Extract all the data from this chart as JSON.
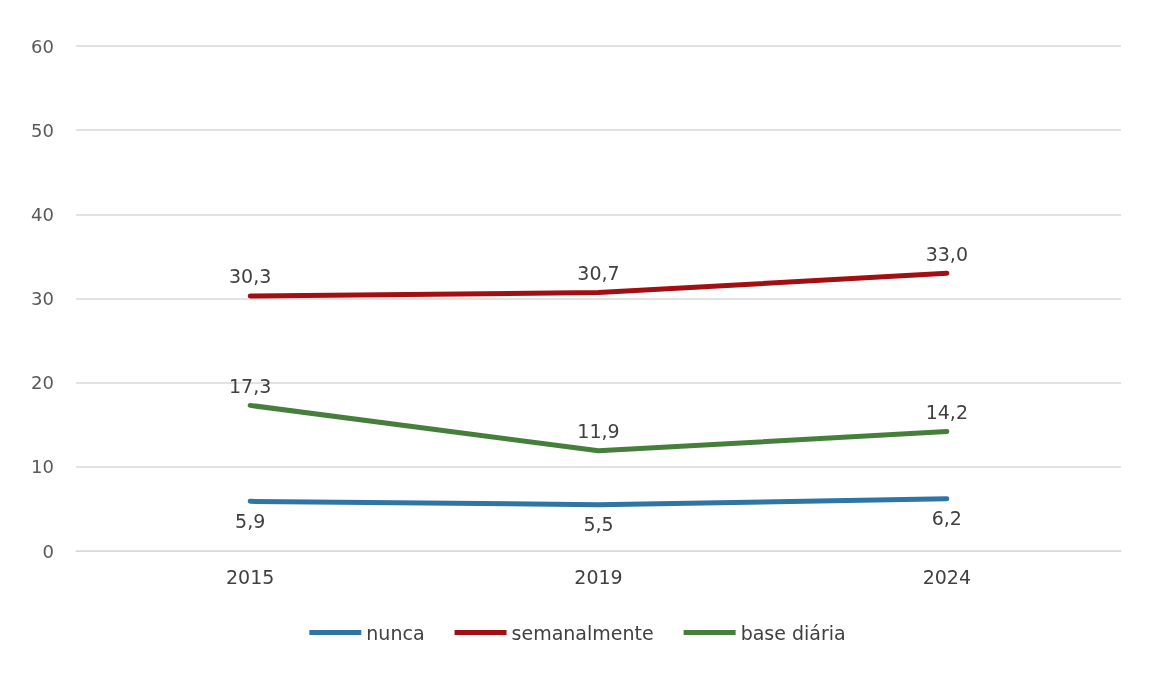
{
  "chart_data": {
    "type": "line",
    "categories": [
      "2015",
      "2019",
      "2024"
    ],
    "series": [
      {
        "name": "nunca",
        "color": "#2e75a6",
        "values": [
          5.9,
          5.5,
          6.2
        ],
        "value_labels": [
          "5,9",
          "5,5",
          "6,2"
        ]
      },
      {
        "name": "semanalmente",
        "color": "#a10f12",
        "values": [
          30.3,
          30.7,
          33.0
        ],
        "value_labels": [
          "30,3",
          "30,7",
          "33,0"
        ]
      },
      {
        "name": "base diária",
        "color": "#467f3c",
        "values": [
          17.3,
          11.9,
          14.2
        ],
        "value_labels": [
          "17,3",
          "11,9",
          "14,2"
        ]
      }
    ],
    "ylim": [
      0,
      60
    ],
    "yticks": [
      0,
      10,
      20,
      30,
      40,
      50,
      60
    ],
    "grid": "y",
    "legend": "bottom",
    "marker": "none",
    "line_style": "solid"
  }
}
